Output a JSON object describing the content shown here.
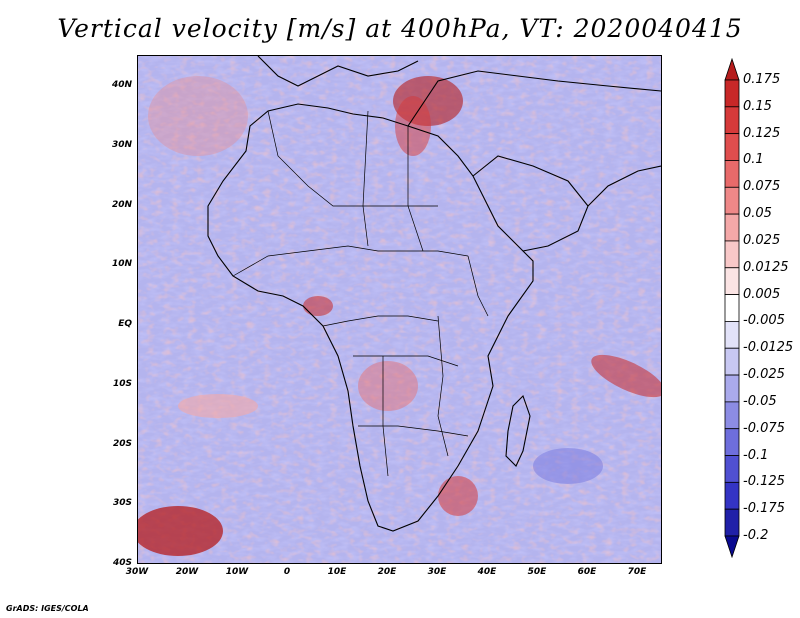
{
  "title": "Vertical velocity [m/s] at 400hPa, VT: 2020040415",
  "credit": "GrADS: IGES/COLA",
  "axes": {
    "lat_labels": [
      "40N",
      "30N",
      "20N",
      "10N",
      "EQ",
      "10S",
      "20S",
      "30S",
      "40S"
    ],
    "lon_labels": [
      "30W",
      "20W",
      "10W",
      "0",
      "10E",
      "20E",
      "30E",
      "40E",
      "50E",
      "60E",
      "70E"
    ]
  },
  "colorbar": {
    "levels": [
      "0.175",
      "0.15",
      "0.125",
      "0.1",
      "0.075",
      "0.05",
      "0.025",
      "0.0125",
      "0.005",
      "-0.005",
      "-0.0125",
      "-0.025",
      "-0.05",
      "-0.075",
      "-0.1",
      "-0.125",
      "-0.175",
      "-0.2"
    ],
    "colors": [
      "#b51c1c",
      "#c82828",
      "#d63a3a",
      "#e04e4e",
      "#e86a6a",
      "#ef8888",
      "#f4a8a8",
      "#f8c8c8",
      "#fbe4e4",
      "#ffffff",
      "#e2e2f8",
      "#c8c8f2",
      "#aaaaec",
      "#8c8ce4",
      "#6e6edc",
      "#5050d2",
      "#3434c4",
      "#2020a8",
      "#0a0a90"
    ]
  },
  "legend_colors": {
    "positive": "#d63a3a",
    "negative": "#6e6edc",
    "coast": "#000000"
  }
}
